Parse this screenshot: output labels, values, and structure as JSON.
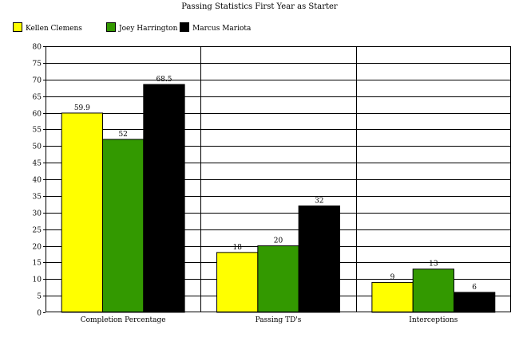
{
  "chart_data": {
    "type": "bar",
    "title": "Passing Statistics First Year as Starter",
    "categories": [
      "Completion Percentage",
      "Passing TD's",
      "Interceptions"
    ],
    "series": [
      {
        "name": "Kellen Clemens",
        "color": "#ffff00",
        "values": [
          59.9,
          18,
          9
        ]
      },
      {
        "name": "Joey Harrington",
        "color": "#339900",
        "values": [
          52,
          20,
          13
        ]
      },
      {
        "name": "Marcus Mariota",
        "color": "#000000",
        "values": [
          68.5,
          32,
          6
        ]
      }
    ],
    "ylim": [
      0,
      80
    ],
    "ytick_step": 5,
    "grid": true,
    "legend_position": "top-left",
    "xlabel": "",
    "ylabel": ""
  }
}
